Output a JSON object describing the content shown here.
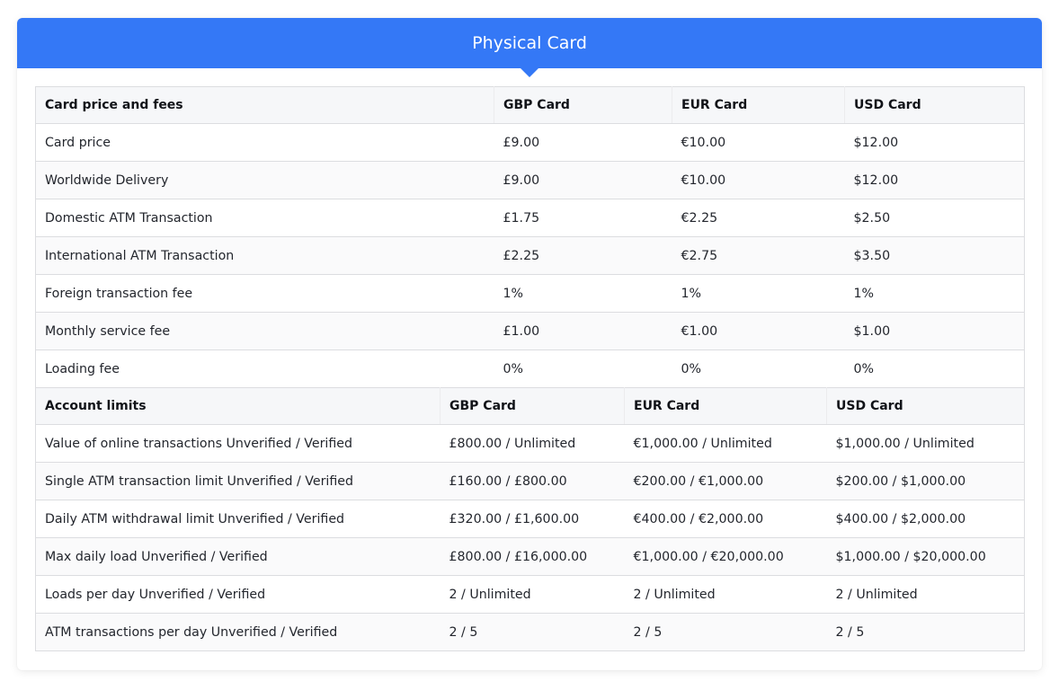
{
  "header": {
    "title": "Physical Card"
  },
  "fees": {
    "columns": [
      "Card price and fees",
      "GBP Card",
      "EUR Card",
      "USD Card"
    ],
    "rows": [
      [
        "Card price",
        "£9.00",
        "€10.00",
        "$12.00"
      ],
      [
        "Worldwide Delivery",
        "£9.00",
        "€10.00",
        "$12.00"
      ],
      [
        "Domestic ATM Transaction",
        "£1.75",
        "€2.25",
        "$2.50"
      ],
      [
        "International ATM Transaction",
        "£2.25",
        "€2.75",
        "$3.50"
      ],
      [
        "Foreign transaction fee",
        "1%",
        "1%",
        "1%"
      ],
      [
        "Monthly service fee",
        "£1.00",
        "€1.00",
        "$1.00"
      ],
      [
        "Loading fee",
        "0%",
        "0%",
        "0%"
      ]
    ]
  },
  "limits": {
    "columns": [
      "Account limits",
      "GBP Card",
      "EUR Card",
      "USD Card"
    ],
    "rows": [
      [
        "Value of online transactions Unverified / Verified",
        "£800.00 / Unlimited",
        "€1,000.00 / Unlimited",
        "$1,000.00 / Unlimited"
      ],
      [
        "Single ATM transaction limit Unverified / Verified",
        "£160.00 / £800.00",
        "€200.00 / €1,000.00",
        "$200.00 / $1,000.00"
      ],
      [
        "Daily ATM withdrawal limit Unverified / Verified",
        "£320.00 / £1,600.00",
        "€400.00 / €2,000.00",
        "$400.00 / $2,000.00"
      ],
      [
        "Max daily load Unverified / Verified",
        "£800.00 / £16,000.00",
        "€1,000.00 / €20,000.00",
        "$1,000.00 / $20,000.00"
      ],
      [
        "Loads per day Unverified / Verified",
        "2 / Unlimited",
        "2 / Unlimited",
        "2 / Unlimited"
      ],
      [
        "ATM transactions per day Unverified / Verified",
        "2 / 5",
        "2 / 5",
        "2 / 5"
      ]
    ]
  }
}
